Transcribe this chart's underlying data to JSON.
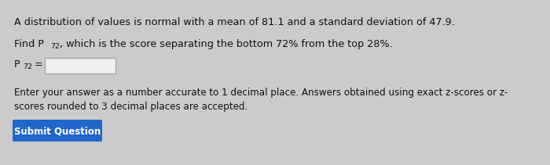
{
  "line1": "A distribution of values is normal with a mean of 81.1 and a standard deviation of 47.9.",
  "line2a": "Find P",
  "line2_sub": "72",
  "line2b": ", which is the score separating the bottom 72% from the top 28%.",
  "line3a": "P",
  "line3_sub": "72",
  "line3b": " =",
  "line4": "Enter your answer as a number accurate to 1 decimal place. Answers obtained using exact z-scores or z-",
  "line5": "scores rounded to 3 decimal places are accepted.",
  "button_text": "Submit Question",
  "bg_color": "#cbcbcb",
  "text_color": "#111111",
  "button_color": "#2266cc",
  "button_text_color": "#ffffff",
  "input_box_color": "#f0f0f0",
  "input_box_border": "#aaaaaa",
  "font_size_main": 9.2,
  "font_size_small": 6.8,
  "font_size_button": 8.5
}
